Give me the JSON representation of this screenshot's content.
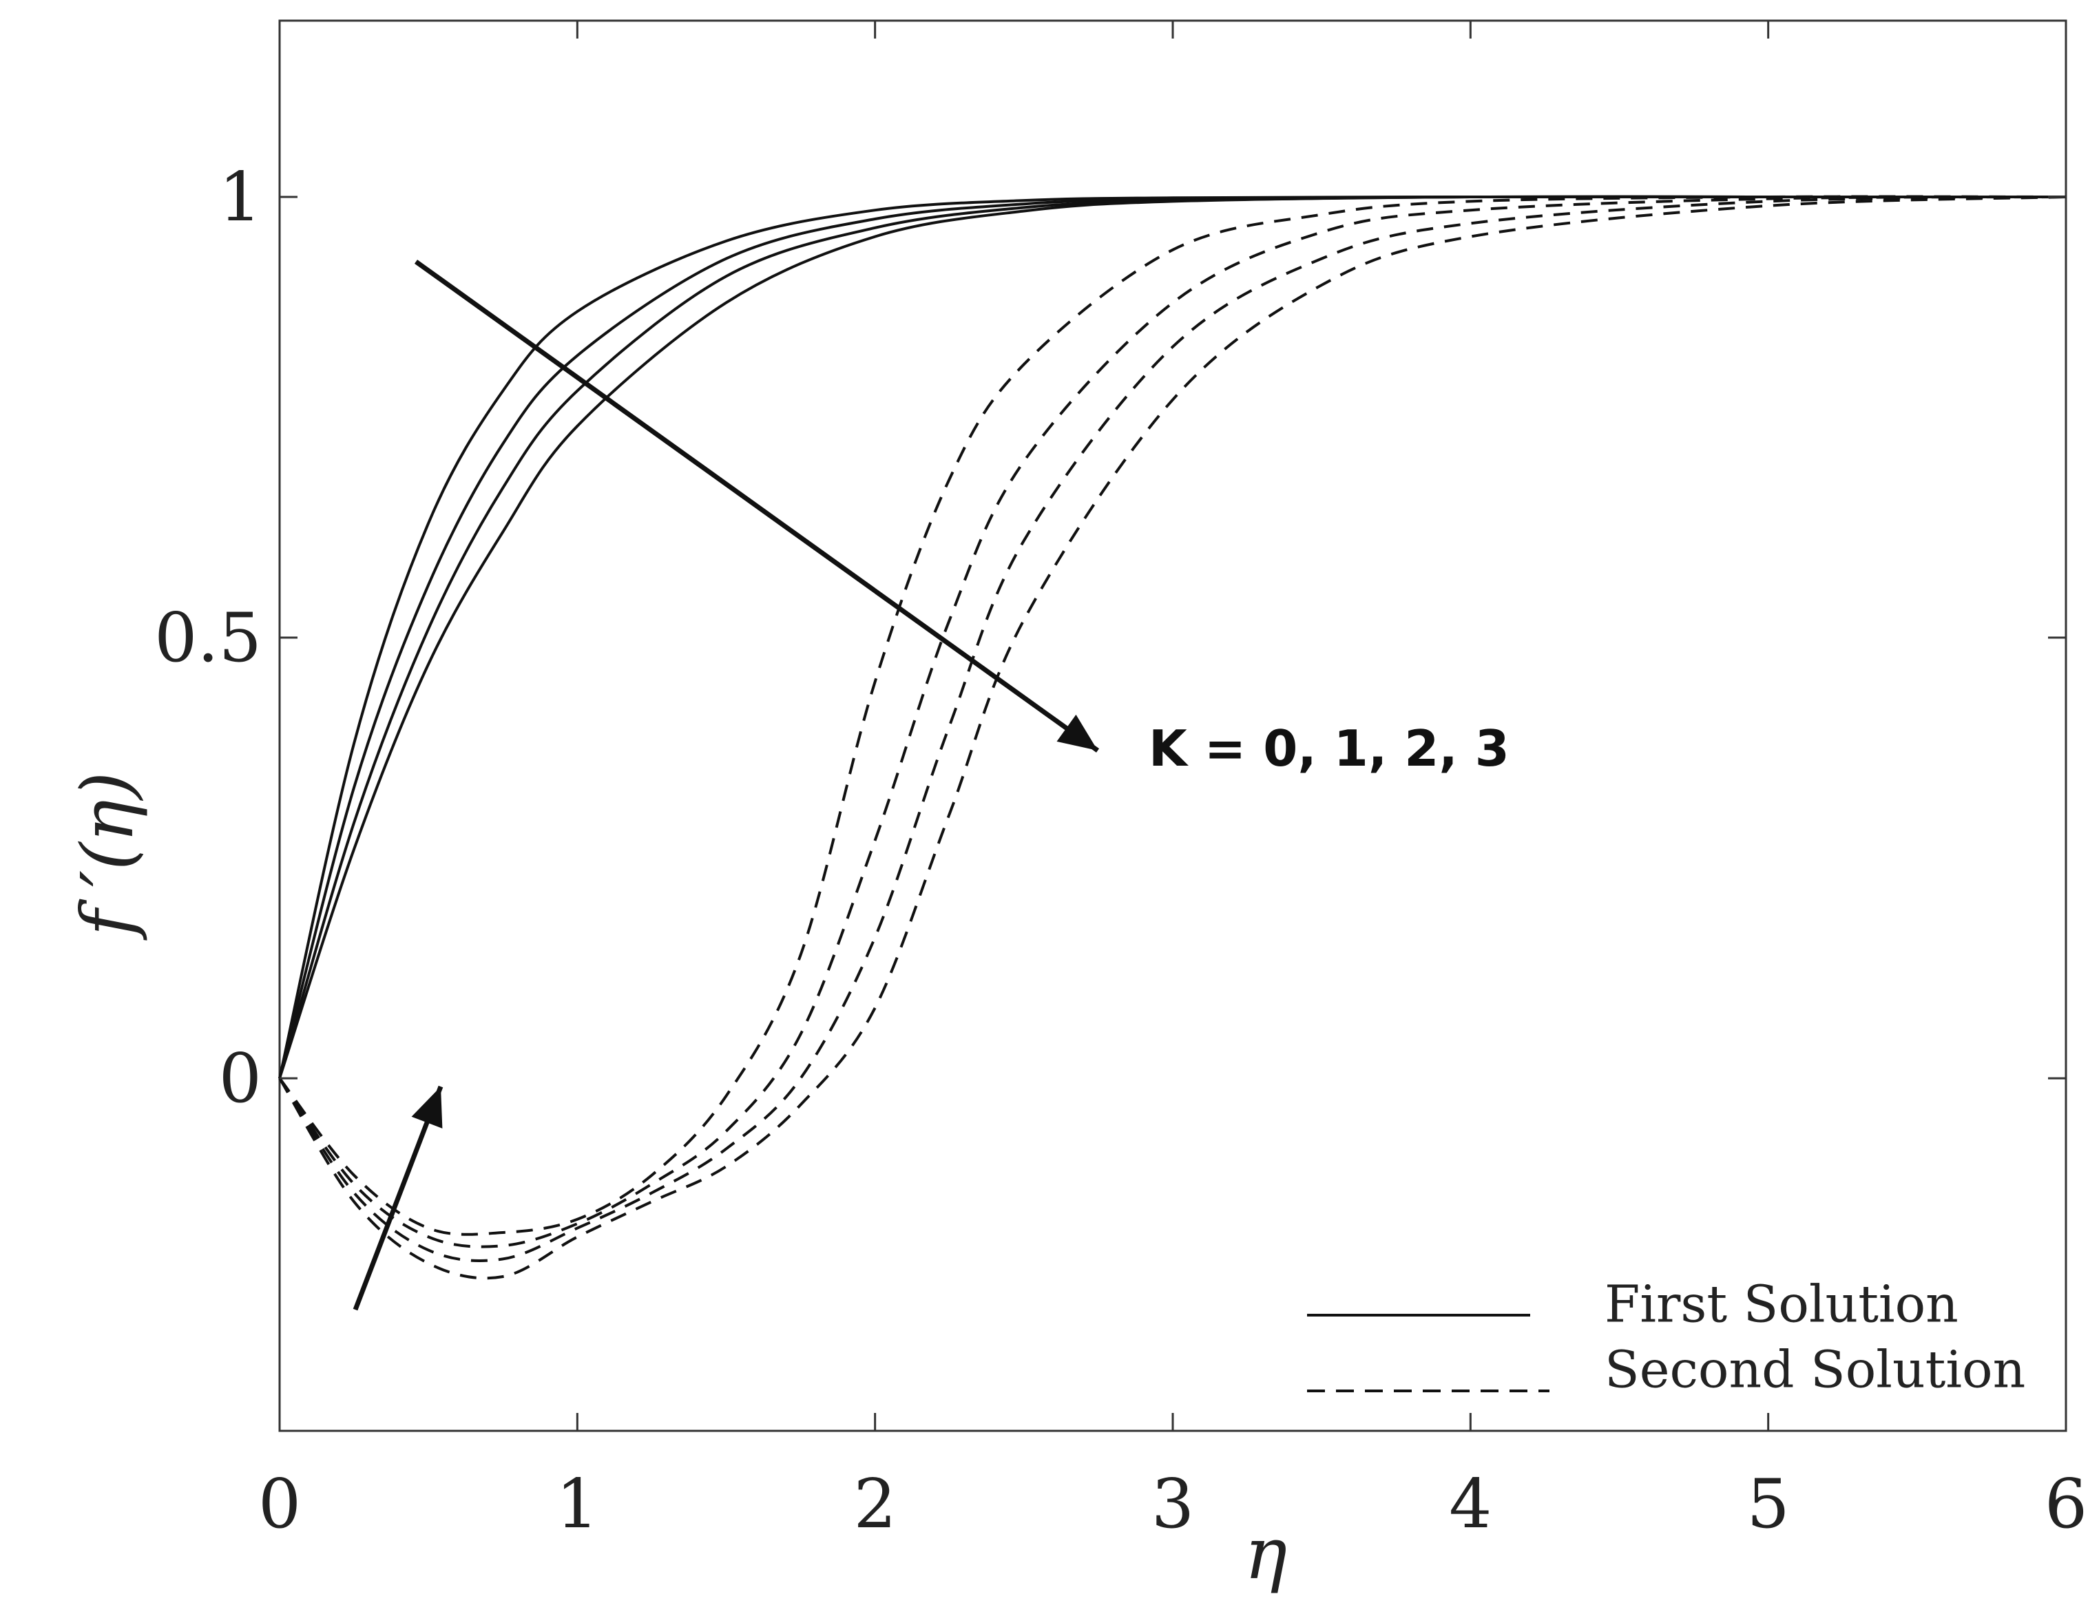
{
  "chart_data": {
    "type": "line",
    "title": "",
    "xlabel": "η",
    "ylabel": "f ′(η)",
    "xlim": [
      0,
      6
    ],
    "ylim": [
      -0.4,
      1.2
    ],
    "xticks": [
      0,
      1,
      2,
      3,
      4,
      5,
      6
    ],
    "xtick_labels": [
      "0",
      "1",
      "2",
      "3",
      "4",
      "5",
      "6"
    ],
    "yticks": [
      0,
      0.5,
      1
    ],
    "ytick_labels": [
      "0",
      "0.5",
      "1"
    ],
    "grid": false,
    "legend": {
      "position": "bottom-right",
      "entries": [
        {
          "label": "First Solution",
          "style": "solid"
        },
        {
          "label": "Second Solution",
          "style": "dashed"
        }
      ]
    },
    "annotation": {
      "text": "K = 0, 1, 2, 3"
    },
    "series": [
      {
        "solution": "first",
        "style": "solid",
        "x": [
          0,
          0.25,
          0.5,
          0.75,
          1,
          1.5,
          2,
          2.5,
          3,
          4,
          5,
          6
        ],
        "y": [
          0,
          0.38,
          0.63,
          0.78,
          0.87,
          0.95,
          0.985,
          0.996,
          0.999,
          1,
          1,
          1
        ]
      },
      {
        "solution": "first",
        "style": "solid",
        "x": [
          0,
          0.25,
          0.5,
          0.75,
          1,
          1.5,
          2,
          2.5,
          3,
          4,
          5,
          6
        ],
        "y": [
          0,
          0.33,
          0.56,
          0.72,
          0.82,
          0.93,
          0.975,
          0.992,
          0.998,
          1,
          1,
          1
        ]
      },
      {
        "solution": "first",
        "style": "solid",
        "x": [
          0,
          0.25,
          0.5,
          0.75,
          1,
          1.5,
          2,
          2.5,
          3,
          4,
          5,
          6
        ],
        "y": [
          0,
          0.29,
          0.51,
          0.67,
          0.78,
          0.91,
          0.965,
          0.988,
          0.996,
          1,
          1,
          1
        ]
      },
      {
        "solution": "first",
        "style": "solid",
        "x": [
          0,
          0.25,
          0.5,
          0.75,
          1,
          1.5,
          2,
          2.5,
          3,
          4,
          5,
          6
        ],
        "y": [
          0,
          0.26,
          0.47,
          0.62,
          0.74,
          0.88,
          0.955,
          0.984,
          0.995,
          1,
          1,
          1
        ]
      },
      {
        "solution": "second",
        "style": "dashed",
        "x": [
          0,
          0.25,
          0.5,
          0.75,
          1,
          1.25,
          1.5,
          1.75,
          2,
          2.25,
          2.5,
          3,
          3.5,
          4,
          5,
          6
        ],
        "y": [
          0,
          -0.11,
          -0.17,
          -0.175,
          -0.16,
          -0.11,
          -0.02,
          0.14,
          0.45,
          0.68,
          0.81,
          0.94,
          0.98,
          0.995,
          1,
          1
        ]
      },
      {
        "solution": "second",
        "style": "dashed",
        "x": [
          0,
          0.25,
          0.5,
          0.75,
          1,
          1.25,
          1.5,
          1.75,
          2,
          2.25,
          2.5,
          3,
          3.5,
          4,
          5,
          6
        ],
        "y": [
          0,
          -0.12,
          -0.18,
          -0.19,
          -0.165,
          -0.12,
          -0.06,
          0.05,
          0.27,
          0.52,
          0.7,
          0.88,
          0.96,
          0.985,
          0.998,
          1
        ]
      },
      {
        "solution": "second",
        "style": "dashed",
        "x": [
          0,
          0.25,
          0.5,
          0.75,
          1,
          1.25,
          1.5,
          1.75,
          2,
          2.25,
          2.5,
          3,
          3.5,
          4,
          5,
          6
        ],
        "y": [
          0,
          -0.13,
          -0.195,
          -0.205,
          -0.17,
          -0.13,
          -0.08,
          0.0,
          0.16,
          0.4,
          0.61,
          0.83,
          0.93,
          0.97,
          0.995,
          1
        ]
      },
      {
        "solution": "second",
        "style": "dashed",
        "x": [
          0,
          0.25,
          0.5,
          0.75,
          1,
          1.25,
          1.5,
          1.75,
          2,
          2.25,
          2.5,
          3,
          3.5,
          4,
          5,
          6
        ],
        "y": [
          0,
          -0.14,
          -0.21,
          -0.225,
          -0.18,
          -0.14,
          -0.1,
          -0.03,
          0.08,
          0.3,
          0.52,
          0.77,
          0.9,
          0.955,
          0.99,
          1
        ]
      }
    ]
  }
}
